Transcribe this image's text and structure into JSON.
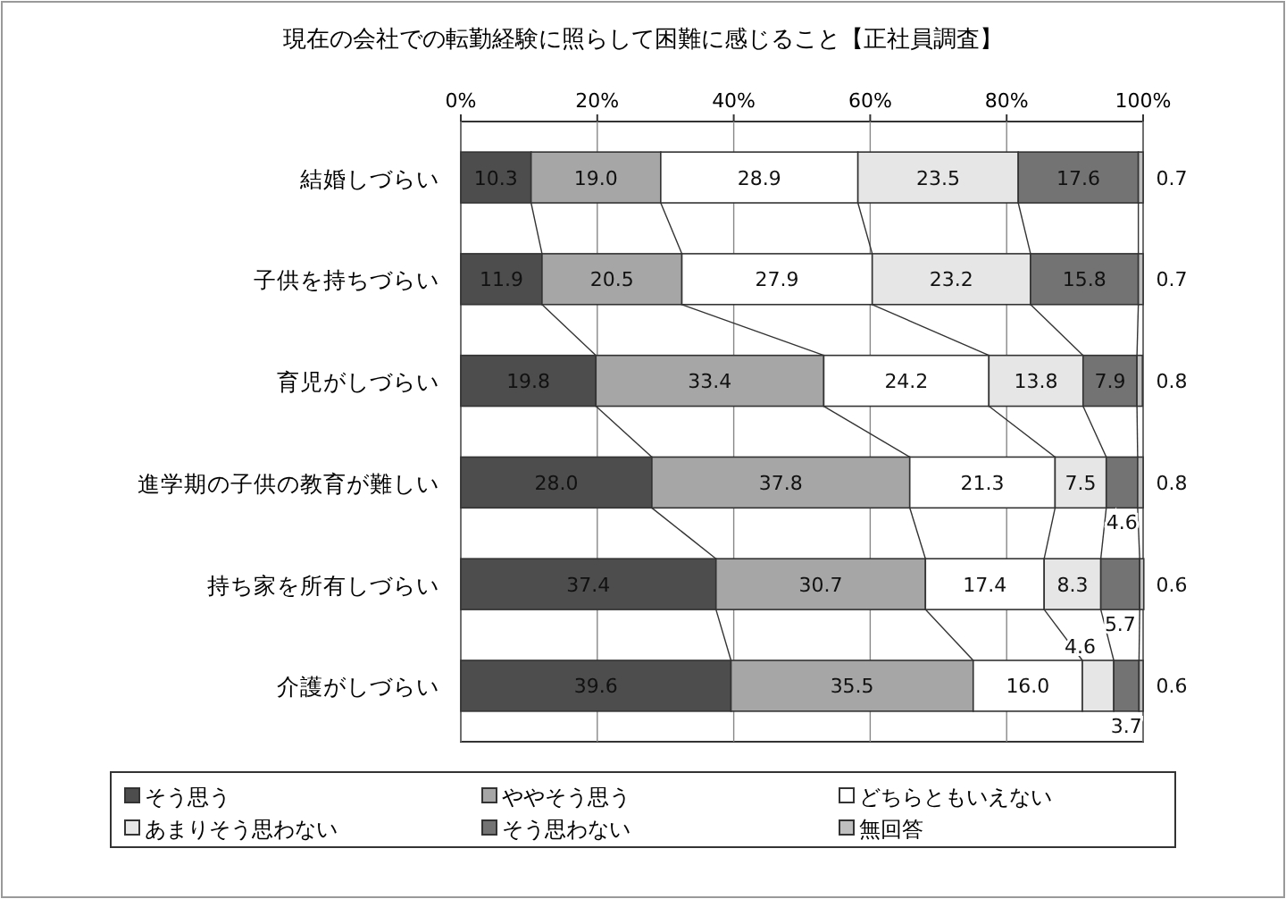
{
  "chart_data": {
    "type": "bar",
    "orientation": "horizontal",
    "stacked": true,
    "title": "現在の会社での転勤経験に照らして困難に感じること【正社員調査】",
    "categories": [
      "結婚しづらい",
      "子供を持ちづらい",
      "育児がしづらい",
      "進学期の子供の教育が難しい",
      "持ち家を所有しづらい",
      "介護がしづらい"
    ],
    "series": [
      {
        "name": "そう思う",
        "color": "#4d4d4d",
        "values": [
          10.3,
          11.9,
          19.8,
          28.0,
          37.4,
          39.6
        ],
        "value_labels": [
          "10.3",
          "11.9",
          "19.8",
          "28.0",
          "37.4",
          "39.6"
        ]
      },
      {
        "name": "ややそう思う",
        "color": "#a6a6a6",
        "values": [
          19.0,
          20.5,
          33.4,
          37.8,
          30.7,
          35.5
        ],
        "value_labels": [
          "19.0",
          "20.5",
          "33.4",
          "37.8",
          "30.7",
          "35.5"
        ]
      },
      {
        "name": "どちらともいえない",
        "color": "#ffffff",
        "values": [
          28.9,
          27.9,
          24.2,
          21.3,
          17.4,
          16.0
        ],
        "value_labels": [
          "28.9",
          "27.9",
          "24.2",
          "21.3",
          "17.4",
          "16.0"
        ]
      },
      {
        "name": "あまりそう思わない",
        "color": "#e6e6e6",
        "values": [
          23.5,
          23.2,
          13.8,
          7.5,
          8.3,
          4.6
        ]
      },
      {
        "name": "そう思わない",
        "color": "#737373",
        "values": [
          17.6,
          15.8,
          7.9,
          4.6,
          5.7,
          3.7
        ]
      },
      {
        "name": "無回答",
        "color": "#bfbfbf",
        "values": [
          0.7,
          0.7,
          0.8,
          0.8,
          0.6,
          0.6
        ]
      }
    ],
    "xlim": [
      0,
      100
    ],
    "xticks": [
      {
        "value": 0,
        "label": "0%"
      },
      {
        "value": 20,
        "label": "20%"
      },
      {
        "value": 40,
        "label": "40%"
      },
      {
        "value": 60,
        "label": "60%"
      },
      {
        "value": 80,
        "label": "80%"
      },
      {
        "value": 100,
        "label": "100%"
      }
    ],
    "data_labels": true,
    "grid": "x",
    "legend": "bottom"
  }
}
